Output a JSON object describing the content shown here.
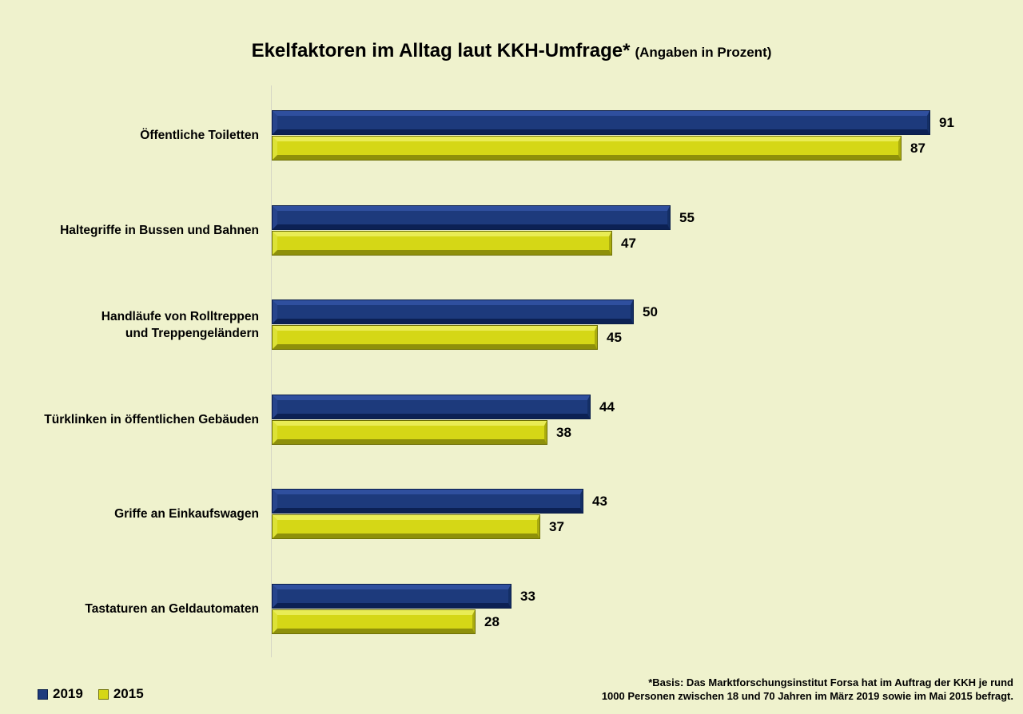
{
  "title": {
    "main": "Ekelfaktoren im Alltag laut KKH-Umfrage*",
    "subtitle": "(Angaben in Prozent)"
  },
  "legend": [
    {
      "label": "2019",
      "color": "#1d3a7c"
    },
    {
      "label": "2015",
      "color": "#d5d716"
    }
  ],
  "footnote": {
    "line1": "*Basis: Das Marktforschungsinstitut Forsa hat im Auftrag der KKH je rund",
    "line2": "1000 Personen zwischen 18 und 70 Jahren im März 2019 sowie im Mai 2015 befragt."
  },
  "colors": {
    "background": "#eff2cd",
    "bar_2019": "#1d3a7c",
    "bar_2015": "#d5d716",
    "axis_line": "#d6d6c6",
    "text": "#000000"
  },
  "chart_data": {
    "type": "bar",
    "orientation": "horizontal",
    "title": "Ekelfaktoren im Alltag laut KKH-Umfrage* (Angaben in Prozent)",
    "unit": "percent",
    "xlim": [
      0,
      100
    ],
    "grid": false,
    "legend_position": "bottom-left",
    "value_labels": true,
    "categories": [
      "Öffentliche Toiletten",
      "Haltegriffe in Bussen und Bahnen",
      "Handläufe von Rolltreppen und Treppengeländern",
      "Türklinken in öffentlichen Gebäuden",
      "Griffe an Einkaufswagen",
      "Tastaturen an Geldautomaten"
    ],
    "category_display_lines": [
      [
        "Öffentliche Toiletten"
      ],
      [
        "Haltegriffe in Bussen und Bahnen"
      ],
      [
        "Handläufe von Rolltreppen",
        "und Treppengeländern"
      ],
      [
        "Türklinken in öffentlichen Gebäuden"
      ],
      [
        "Griffe an Einkaufswagen"
      ],
      [
        "Tastaturen an Geldautomaten"
      ]
    ],
    "series": [
      {
        "name": "2019",
        "values": [
          91,
          55,
          50,
          44,
          43,
          33
        ]
      },
      {
        "name": "2015",
        "values": [
          87,
          47,
          45,
          38,
          37,
          28
        ]
      }
    ]
  }
}
